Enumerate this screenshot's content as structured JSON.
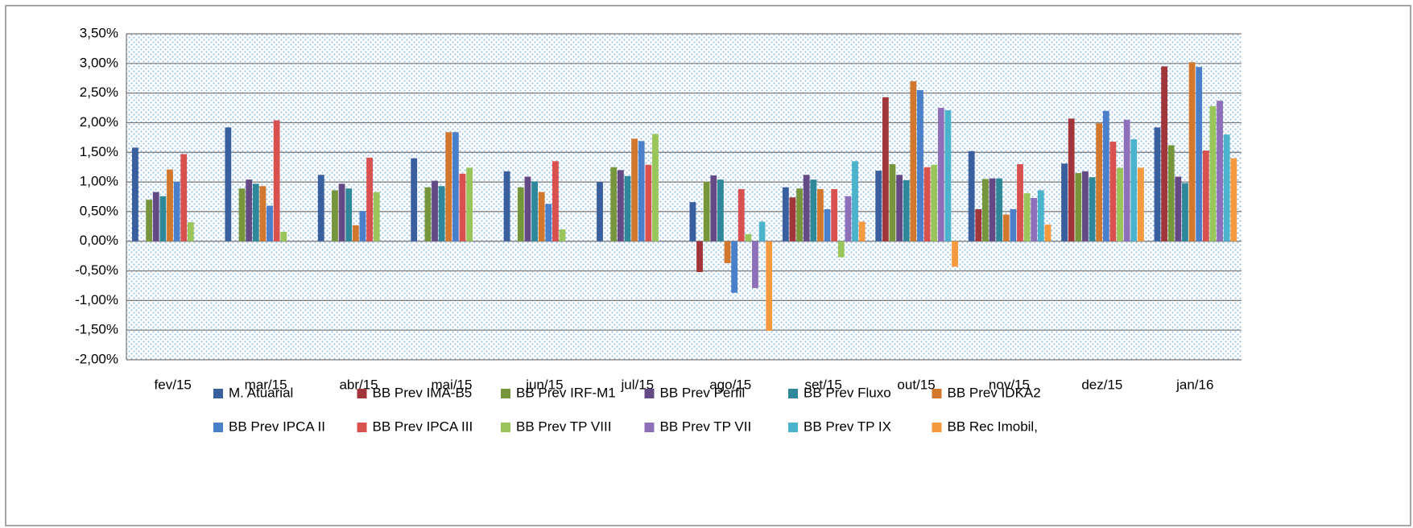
{
  "chart_data": {
    "type": "bar",
    "categories": [
      "fev/15",
      "mar/15",
      "abr/15",
      "mai/15",
      "jun/15",
      "jul/15",
      "ago/15",
      "set/15",
      "out/15",
      "nov/15",
      "dez/15",
      "jan/16"
    ],
    "series": [
      {
        "name": "M. Atuarial",
        "color": "#3a5f9e",
        "values": [
          1.58,
          1.92,
          1.12,
          1.4,
          1.18,
          1.0,
          0.66,
          0.91,
          1.19,
          1.52,
          1.31,
          1.92
        ]
      },
      {
        "name": "BB Prev IMA-B5",
        "color": "#a0353a",
        "values": [
          null,
          null,
          null,
          null,
          null,
          null,
          -0.52,
          0.74,
          2.43,
          0.54,
          2.07,
          2.95
        ]
      },
      {
        "name": "BB Prev IRF-M1",
        "color": "#77963c",
        "values": [
          0.7,
          0.89,
          0.86,
          0.91,
          0.91,
          1.25,
          1.0,
          0.89,
          1.3,
          1.05,
          1.15,
          1.62
        ]
      },
      {
        "name": "BB Prev Perfil",
        "color": "#644a85",
        "values": [
          0.83,
          1.04,
          0.97,
          1.02,
          1.09,
          1.2,
          1.11,
          1.12,
          1.12,
          1.06,
          1.18,
          1.09
        ]
      },
      {
        "name": "BB Prev Fluxo",
        "color": "#2e889a",
        "values": [
          0.76,
          0.97,
          0.89,
          0.93,
          1.01,
          1.1,
          1.04,
          1.04,
          1.03,
          1.06,
          1.08,
          0.98
        ]
      },
      {
        "name": "BB Prev IDKA2",
        "color": "#d2782e",
        "values": [
          1.21,
          0.93,
          0.27,
          1.84,
          0.83,
          1.73,
          -0.37,
          0.88,
          2.7,
          0.45,
          1.99,
          3.02
        ]
      },
      {
        "name": "BB Prev IPCA II",
        "color": "#4a7fc9",
        "values": [
          1.0,
          0.6,
          0.51,
          1.84,
          0.63,
          1.69,
          -0.87,
          0.54,
          2.55,
          0.54,
          2.2,
          2.94
        ]
      },
      {
        "name": "BB Prev IPCA III",
        "color": "#d9514f",
        "values": [
          1.47,
          2.04,
          1.41,
          1.14,
          1.35,
          1.29,
          0.88,
          0.88,
          1.25,
          1.3,
          1.68,
          1.53
        ]
      },
      {
        "name": "BB Prev TP VIII",
        "color": "#9ac55a",
        "values": [
          0.32,
          0.16,
          0.83,
          1.24,
          0.2,
          1.81,
          0.12,
          -0.27,
          1.29,
          0.81,
          1.24,
          2.28
        ]
      },
      {
        "name": "BB Prev TP VII",
        "color": "#8e6fb9",
        "values": [
          null,
          null,
          null,
          null,
          null,
          null,
          -0.79,
          0.76,
          2.25,
          0.73,
          2.05,
          2.37
        ]
      },
      {
        "name": "BB Prev TP IX",
        "color": "#4bb3cc",
        "values": [
          null,
          null,
          null,
          null,
          null,
          null,
          0.33,
          1.35,
          2.21,
          0.86,
          1.72,
          1.8
        ]
      },
      {
        "name": "BB Rec Imobil,",
        "color": "#f59a3f",
        "values": [
          null,
          null,
          null,
          null,
          null,
          null,
          -1.51,
          0.33,
          -0.43,
          0.28,
          1.24,
          1.4
        ]
      }
    ],
    "ylim": [
      -2,
      3.5
    ],
    "yticks": [
      {
        "value": -2,
        "label": "-2,00%"
      },
      {
        "value": -1.5,
        "label": "-1,50%"
      },
      {
        "value": -1,
        "label": "-1,00%"
      },
      {
        "value": -0.5,
        "label": "-0,50%"
      },
      {
        "value": 0,
        "label": "0,00%"
      },
      {
        "value": 0.5,
        "label": "0,50%"
      },
      {
        "value": 1,
        "label": "1,00%"
      },
      {
        "value": 1.5,
        "label": "1,50%"
      },
      {
        "value": 2,
        "label": "2,00%"
      },
      {
        "value": 2.5,
        "label": "2,50%"
      },
      {
        "value": 3,
        "label": "3,00%"
      },
      {
        "value": 3.5,
        "label": "3,50%"
      }
    ],
    "grid": true
  }
}
